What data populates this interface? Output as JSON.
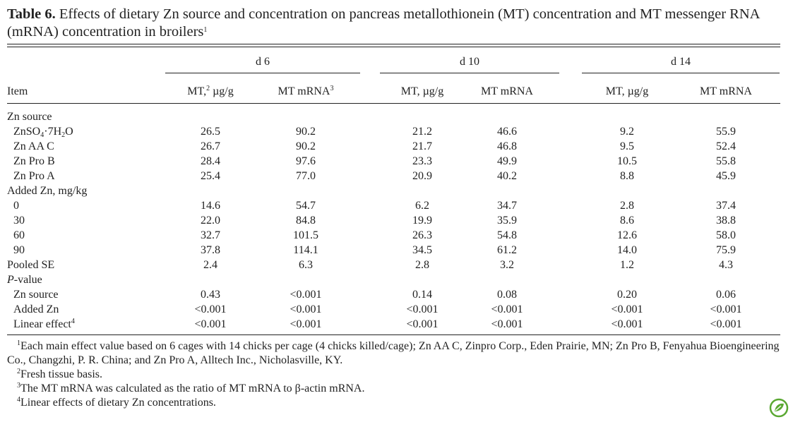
{
  "title": {
    "label": "Table 6.",
    "text": "Effects of dietary Zn source and concentration on pancreas metallothionein (MT) concentration and MT messenger RNA (mRNA) concentration in broilers",
    "note": "1"
  },
  "table": {
    "item_header": "Item",
    "groups": [
      "d 6",
      "d 10",
      "d 14"
    ],
    "columns": [
      [
        {
          "text": "MT,"
        },
        {
          "sup": "2"
        },
        {
          "text": " µg/g"
        }
      ],
      [
        {
          "text": "MT mRNA"
        },
        {
          "sup": "3"
        }
      ],
      [
        {
          "text": "MT, µg/g"
        }
      ],
      [
        {
          "text": "MT mRNA"
        }
      ],
      [
        {
          "text": "MT, µg/g"
        }
      ],
      [
        {
          "text": "MT mRNA"
        }
      ]
    ],
    "rows": [
      {
        "label": [
          {
            "text": "Zn source"
          }
        ],
        "rows": [
          {
            "label": [
              {
                "text": "ZnSO"
              },
              {
                "sub": "4"
              },
              {
                "text": "·7H"
              },
              {
                "sub": "2"
              },
              {
                "text": "O"
              }
            ],
            "values": [
              "26.5",
              "90.2",
              "21.2",
              "46.6",
              "9.2",
              "55.9"
            ]
          },
          {
            "label": [
              {
                "text": "Zn AA C"
              }
            ],
            "values": [
              "26.7",
              "90.2",
              "21.7",
              "46.8",
              "9.5",
              "52.4"
            ]
          },
          {
            "label": [
              {
                "text": "Zn Pro B"
              }
            ],
            "values": [
              "28.4",
              "97.6",
              "23.3",
              "49.9",
              "10.5",
              "55.8"
            ]
          },
          {
            "label": [
              {
                "text": "Zn Pro A"
              }
            ],
            "values": [
              "25.4",
              "77.0",
              "20.9",
              "40.2",
              "8.8",
              "45.9"
            ]
          }
        ]
      },
      {
        "label": [
          {
            "text": "Added Zn, mg/kg"
          }
        ],
        "rows": [
          {
            "label": [
              {
                "text": "0"
              }
            ],
            "values": [
              "14.6",
              "54.7",
              "6.2",
              "34.7",
              "2.8",
              "37.4"
            ]
          },
          {
            "label": [
              {
                "text": "30"
              }
            ],
            "values": [
              "22.0",
              "84.8",
              "19.9",
              "35.9",
              "8.6",
              "38.8"
            ]
          },
          {
            "label": [
              {
                "text": "60"
              }
            ],
            "values": [
              "32.7",
              "101.5",
              "26.3",
              "54.8",
              "12.6",
              "58.0"
            ]
          },
          {
            "label": [
              {
                "text": "90"
              }
            ],
            "values": [
              "37.8",
              "114.1",
              "34.5",
              "61.2",
              "14.0",
              "75.9"
            ]
          }
        ]
      },
      {
        "label": [
          {
            "text": "Pooled SE"
          }
        ],
        "values": [
          "2.4",
          "6.3",
          "2.8",
          "3.2",
          "1.2",
          "4.3"
        ]
      },
      {
        "label": [
          {
            "italic": "P"
          },
          {
            "text": "-value"
          }
        ],
        "rows": [
          {
            "label": [
              {
                "text": "Zn source"
              }
            ],
            "values": [
              "0.43",
              "<0.001",
              "0.14",
              "0.08",
              "0.20",
              "0.06"
            ]
          },
          {
            "label": [
              {
                "text": "Added Zn"
              }
            ],
            "values": [
              "<0.001",
              "<0.001",
              "<0.001",
              "<0.001",
              "<0.001",
              "<0.001"
            ]
          },
          {
            "label": [
              {
                "text": "Linear effect"
              },
              {
                "sup": "4"
              }
            ],
            "values": [
              "<0.001",
              "<0.001",
              "<0.001",
              "<0.001",
              "<0.001",
              "<0.001"
            ]
          }
        ]
      }
    ]
  },
  "footnotes": [
    [
      {
        "sup": "1"
      },
      {
        "text": "Each main effect value based on 6 cages with 14 chicks per cage (4 chicks killed/cage); Zn AA C, Zinpro Corp., Eden Prairie, MN; Zn Pro B, Fenyahua Bioengineering Co., Changzhi, P. R. China; and Zn Pro A, Alltech Inc., Nicholasville, KY."
      }
    ],
    [
      {
        "sup": "2"
      },
      {
        "text": "Fresh tissue basis."
      }
    ],
    [
      {
        "sup": "3"
      },
      {
        "text": "The MT mRNA was calculated as the ratio of MT mRNA to β-actin mRNA."
      }
    ],
    [
      {
        "sup": "4"
      },
      {
        "text": "Linear effects of dietary Zn concentrations."
      }
    ]
  ]
}
